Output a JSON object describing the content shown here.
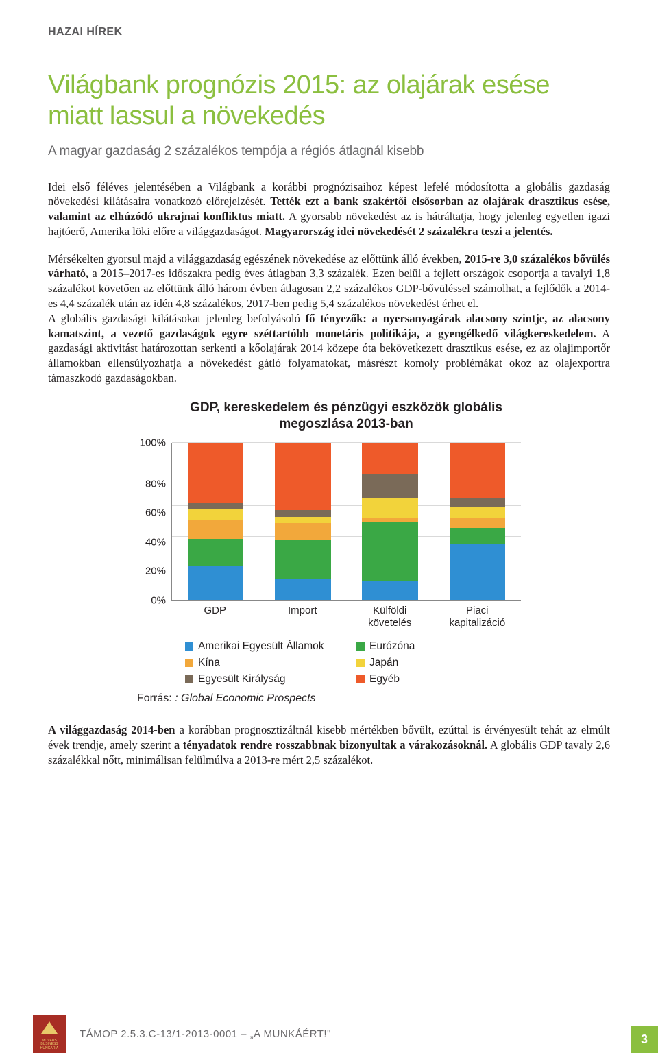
{
  "section_header": "HAZAI HÍREK",
  "main_title": "Világbank prognózis 2015: az olajárak esése miatt lassul a növekedés",
  "subtitle": "A magyar gazdaság 2 százalékos tempója a régiós átlagnál kisebb",
  "lead_html": "Idei első féléves jelentésében a Világbank a korábbi prognózisaihoz képest lefelé módosította a globális gazdaság növekedési kilátásaira vonatkozó előrejelzését. <b>Tették ezt a bank szakértői elsősorban az olajárak drasztikus esése, valamint az elhúzódó ukrajnai konfliktus miatt.</b> A gyorsabb növekedést az is hátráltatja, hogy jelenleg egyetlen igazi hajtóerő, Amerika löki előre a világgazdaságot. <b>Magyarország idei növekedését 2 százalékra teszi a jelentés.</b>",
  "body1_html": "Mérsékelten gyorsul majd a világgazdaság egészének növekedése az előttünk álló években, <b>2015-re 3,0 százalékos bővülés várható,</b> a 2015–2017-es időszakra pedig éves átlagban 3,3 százalék. Ezen belül a fejlett országok csoportja a tavalyi 1,8 százalékot követően az előttünk álló három évben átlagosan 2,2 százalékos GDP-bővüléssel számolhat, a fejlődők a 2014-es 4,4 százalék után az idén 4,8 százalékos, 2017-ben pedig 5,4 százalékos növekedést érhet el.<br>A globális gazdasági kilátásokat jelenleg befolyásoló <b>fő tényezők: a nyersanyagárak alacsony szintje, az alacsony kamatszint, a vezető gazdaságok egyre széttartóbb monetáris politikája, a gyengélkedő világkereskedelem.</b> A gazdasági aktivitást határozottan serkenti a kőolajárak 2014 közepe óta bekövetkezett drasztikus esése, ez az olajimportőr államokban ellensúlyozhatja a növekedést gátló folyamatokat, másrészt komoly problémákat okoz az olajexportra támaszkodó gazdaságokban.",
  "chart": {
    "type": "stacked-bar",
    "title": "GDP, kereskedelem és pénzügyi eszközök globális megoszlása 2013-ban",
    "ylim": [
      0,
      100
    ],
    "ytick_step": 20,
    "yticks": [
      "100%",
      "80%",
      "60%",
      "40%",
      "20%",
      "0%"
    ],
    "background_color": "#ffffff",
    "grid_color": "#d9d9d9",
    "axis_color": "#888888",
    "bar_width_pct": 16,
    "categories": [
      "GDP",
      "Import",
      "Külföldi\nkövetelés",
      "Piaci\nkapitalizáció"
    ],
    "series": [
      {
        "key": "usa",
        "label": "Amerikai Egyesült Államok",
        "color": "#2f8fd3"
      },
      {
        "key": "euro",
        "label": "Eurózóna",
        "color": "#3aa845"
      },
      {
        "key": "china",
        "label": "Kína",
        "color": "#f2a83b"
      },
      {
        "key": "japan",
        "label": "Japán",
        "color": "#f2d33b"
      },
      {
        "key": "uk",
        "label": "Egyesült Királyság",
        "color": "#7a6a58"
      },
      {
        "key": "other",
        "label": "Egyéb",
        "color": "#ee5a2a"
      }
    ],
    "values": {
      "GDP": {
        "usa": 22,
        "euro": 17,
        "china": 12,
        "japan": 7,
        "uk": 4,
        "other": 38
      },
      "Import": {
        "usa": 13,
        "euro": 25,
        "china": 11,
        "japan": 4,
        "uk": 4,
        "other": 43
      },
      "Külföldi követelés": {
        "usa": 12,
        "euro": 38,
        "china": 2,
        "japan": 13,
        "uk": 15,
        "other": 20
      },
      "Piaci kapitalizáció": {
        "usa": 36,
        "euro": 10,
        "china": 6,
        "japan": 7,
        "uk": 6,
        "other": 35
      }
    },
    "source_prefix": "Forrás: ",
    "source_italic": ": Global Economic Prospects",
    "label_font": "Arial",
    "label_fontsize": 15,
    "title_fontsize": 19
  },
  "closing_html": "<b>A világgazdaság 2014-ben</b> a korábban prognosztizáltnál kisebb mértékben bővült, ezúttal is érvényesült tehát az elmúlt évek trendje, amely szerint <b>a tényadatok rendre rosszabbnak bizonyultak a várakozásoknál.</b> A globális GDP tavaly 2,6 százalékkal nőtt, minimálisan felülmúlva a 2013-re mért 2,5 százalékot.",
  "footer": {
    "logo_text": "MOVERS\nBUSINESS\nHUNGARIA",
    "project_code": "TÁMOP 2.5.3.C-13/1-2013-0001 – „A MUNKÁÉRT!\"",
    "page_number": "3",
    "logo_bg": "#a72d24",
    "logo_accent": "#e8c96a",
    "pagenum_bg": "#8bbf3f"
  },
  "colors": {
    "title_green": "#8bbf3f",
    "header_gray": "#5a595b",
    "subtitle_gray": "#6a696b",
    "body_text": "#231f20"
  }
}
